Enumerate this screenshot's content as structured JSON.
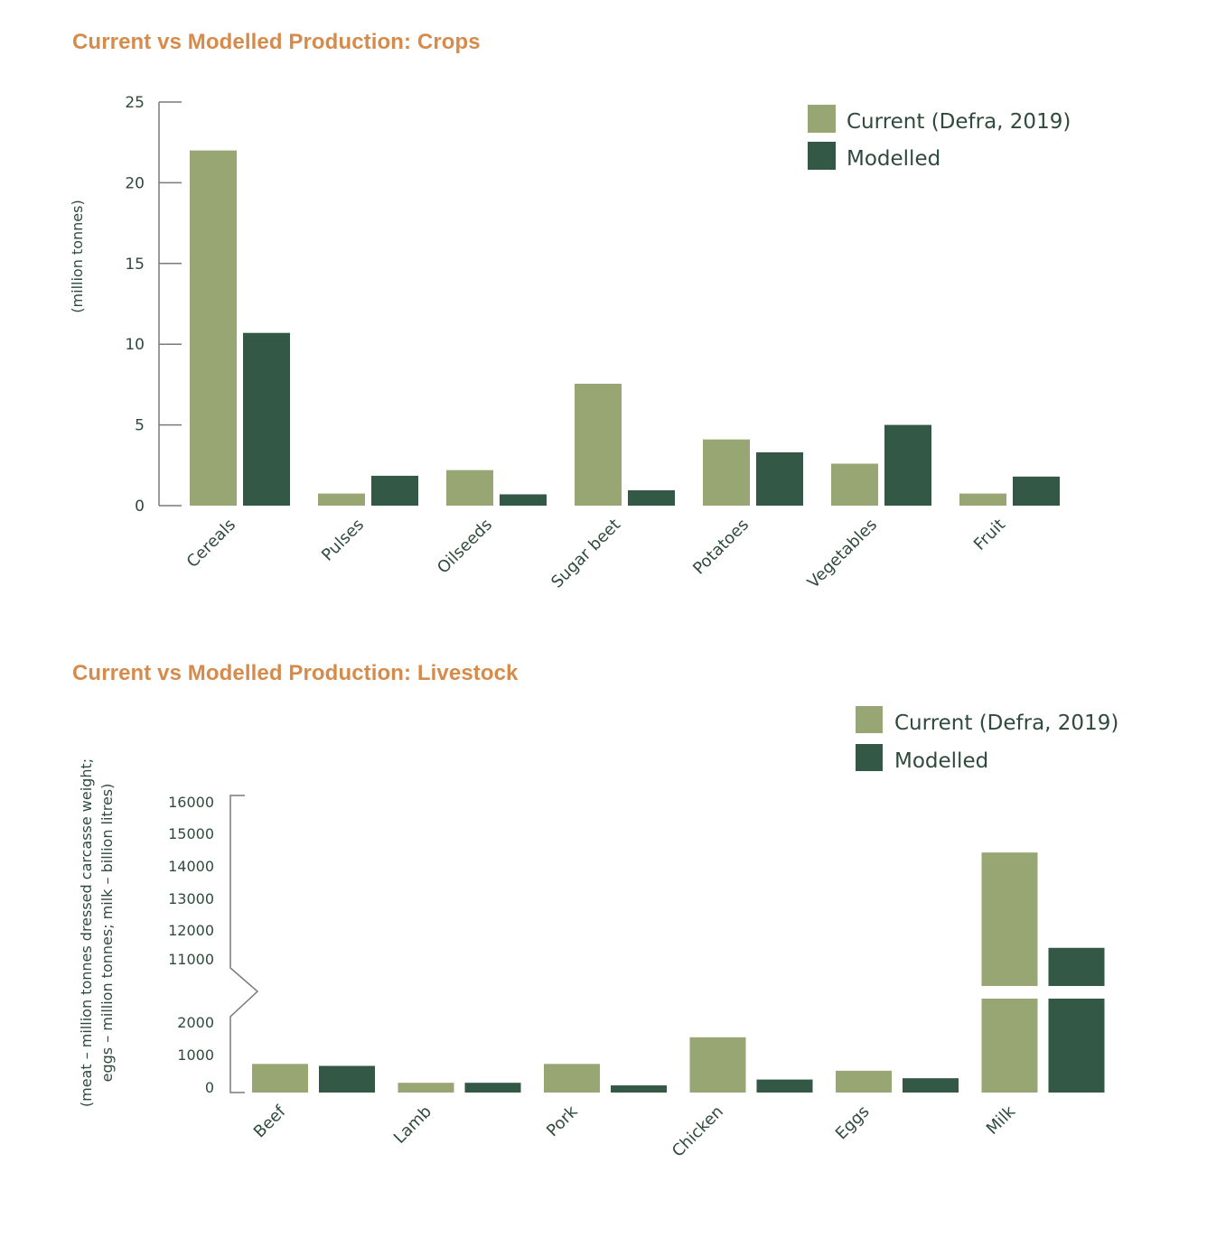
{
  "chart_data": [
    {
      "type": "bar",
      "title": "Current vs Modelled Production: Crops",
      "xlabel": "",
      "ylabel": "(million tonnes)",
      "ylim": [
        0,
        25
      ],
      "yticks": [
        "0",
        "5",
        "10",
        "15",
        "20",
        "25"
      ],
      "ytick_values": [
        0,
        5,
        10,
        15,
        20,
        25
      ],
      "grid": false,
      "legend_position": "top-right",
      "categories": [
        "Cereals",
        "Pulses",
        "Oilseeds",
        "Sugar beet",
        "Potatoes",
        "Vegetables",
        "Fruit"
      ],
      "series": [
        {
          "name": "Current (Defra, 2019)",
          "color": "#97a673",
          "values": [
            22.0,
            0.75,
            2.2,
            7.55,
            4.1,
            2.6,
            0.75
          ]
        },
        {
          "name": "Modelled",
          "color": "#335846",
          "values": [
            10.7,
            1.85,
            0.7,
            0.95,
            3.3,
            5.0,
            1.8
          ]
        }
      ]
    },
    {
      "type": "bar",
      "title": "Current vs Modelled Production: Livestock",
      "xlabel": "",
      "ylabel_lines": [
        "(meat – million tonnes dressed carcasse weight;",
        "eggs – million tonnes; milk – billion litres)"
      ],
      "ylim": [
        0,
        16000
      ],
      "axis_break": [
        2000,
        11000
      ],
      "yticks": [
        "0",
        "1000",
        "2000",
        "11000",
        "12000",
        "13000",
        "14000",
        "15000",
        "16000"
      ],
      "ytick_values": [
        0,
        1000,
        2000,
        11000,
        12000,
        13000,
        14000,
        15000,
        16000
      ],
      "grid": false,
      "legend_position": "top-right",
      "categories": [
        "Beef",
        "Lamb",
        "Pork",
        "Chicken",
        "Eggs",
        "Milk"
      ],
      "series": [
        {
          "name": "Current (Defra, 2019)",
          "color": "#97a673",
          "values": [
            880,
            300,
            880,
            1700,
            670,
            15200
          ]
        },
        {
          "name": "Modelled",
          "color": "#335846",
          "values": [
            820,
            300,
            220,
            400,
            440,
            12200
          ]
        }
      ]
    }
  ],
  "colors": {
    "title": "#d68b4a",
    "text": "#2f4a3c",
    "axis": "#7a7a7a"
  }
}
